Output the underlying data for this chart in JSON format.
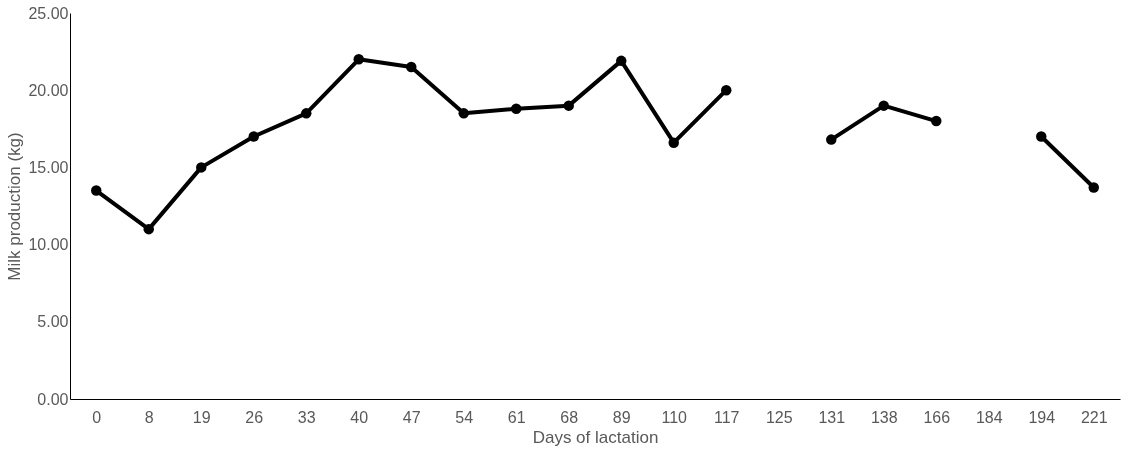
{
  "chart_data": {
    "type": "line",
    "xlabel": "Days of lactation",
    "ylabel": "Milk production (kg)",
    "categories": [
      "0",
      "8",
      "19",
      "26",
      "33",
      "40",
      "47",
      "54",
      "61",
      "68",
      "89",
      "110",
      "117",
      "125",
      "131",
      "138",
      "166",
      "184",
      "194",
      "221"
    ],
    "series": [
      {
        "color": "#000000",
        "values": [
          13.5,
          11.0,
          15.0,
          17.0,
          18.5,
          22.0,
          21.5,
          18.5,
          18.8,
          19.0,
          21.9,
          16.6,
          20.0,
          null,
          16.8,
          19.0,
          18.0,
          null,
          17.0,
          13.7
        ]
      }
    ],
    "ylim": [
      0,
      25
    ],
    "yticks": [
      {
        "value": 0,
        "label": "0.00"
      },
      {
        "value": 5,
        "label": "5.00"
      },
      {
        "value": 10,
        "label": "10.00"
      },
      {
        "value": 15,
        "label": "15.00"
      },
      {
        "value": 20,
        "label": "20.00"
      },
      {
        "value": 25,
        "label": "25.00"
      }
    ],
    "grid": false,
    "marker": "circle",
    "line_style": "solid"
  }
}
